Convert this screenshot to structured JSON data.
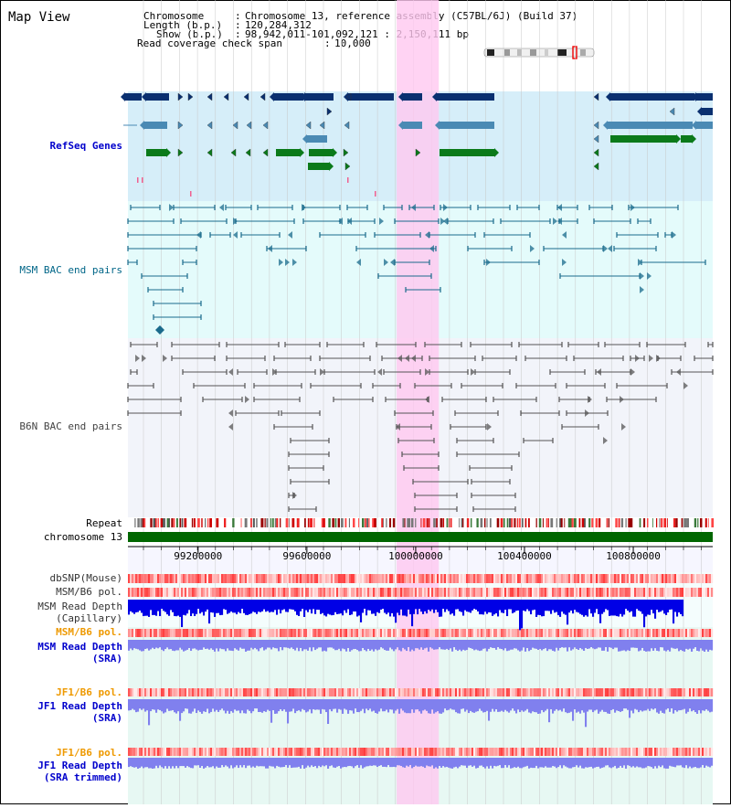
{
  "view_title": "Map View",
  "header": {
    "lines": [
      {
        "label": "Chromosome",
        "value": "Chromosome 13, reference assembly (C57BL/6J) (Build 37)"
      },
      {
        "label": "Length (b.p.)",
        "value": "120,284,312"
      },
      {
        "label": "Show (b.p.)",
        "value": "98,942,011-101,092,121 : 2,150,111 bp"
      }
    ],
    "coverage_label": "Read coverage check span",
    "coverage_value": "10,000"
  },
  "axis": {
    "start_bp": 98942011,
    "end_bp": 101092121,
    "ticks": [
      {
        "bp": 99200000,
        "label": "99200000"
      },
      {
        "bp": 99600000,
        "label": "99600000"
      },
      {
        "bp": 100000000,
        "label": "100000000"
      },
      {
        "bp": 100400000,
        "label": "100400000"
      },
      {
        "bp": 100800000,
        "label": "100800000"
      }
    ]
  },
  "highlight": {
    "start_bp": 99930000,
    "end_bp": 100085000
  },
  "tracks": {
    "refseq": {
      "label": "RefSeq Genes",
      "label_color": "#0000cc"
    },
    "msm_bac": {
      "label": "MSM BAC end pairs",
      "label_color": "#006688"
    },
    "b6n_bac": {
      "label": "B6N BAC end pairs",
      "label_color": "#444444"
    },
    "repeat": {
      "label": "Repeat"
    },
    "chromosome": {
      "label": "chromosome 13"
    },
    "dbsnp": {
      "label": "dbSNP(Mouse)"
    },
    "msm_b6_pol_1": {
      "label": "MSM/B6 pol."
    },
    "msm_depth_cap": {
      "label_1": "MSM Read Depth",
      "label_2": "(Capillary)"
    },
    "msm_b6_pol_2": {
      "label": "MSM/B6 pol.",
      "color": "#ee9900"
    },
    "msm_depth_sra": {
      "label_1": "MSM Read Depth",
      "label_2": "(SRA)",
      "color": "#0000cc"
    },
    "jf1_b6_pol_1": {
      "label": "JF1/B6 pol.",
      "color": "#ee9900"
    },
    "jf1_depth_sra": {
      "label_1": "JF1 Read Depth",
      "label_2": "(SRA)",
      "color": "#0000cc"
    },
    "jf1_b6_pol_2": {
      "label": "JF1/B6 pol.",
      "color": "#ee9900"
    },
    "jf1_depth_trim": {
      "label_1": "JF1 Read Depth",
      "label_2": "(SRA trimmed)",
      "color": "#0000cc"
    }
  },
  "colors": {
    "gene_dark": "#0a3070",
    "gene_mid": "#4a8ab4",
    "gene_green": "#0b7a1a",
    "highlight": "#ffc8f0",
    "bac_msm": "#1a6b8c",
    "bac_b6n": "#555555",
    "chrom_bar": "#006600",
    "depth_capillary": "#0000e6",
    "depth_sra": "#8080ee"
  }
}
